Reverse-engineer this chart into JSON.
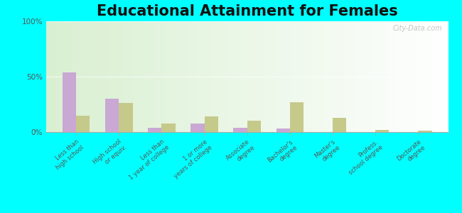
{
  "title": "Educational Attainment for Females",
  "categories": [
    "Less than\nhigh school",
    "High school\nor equiv.",
    "Less than\n1 year of college",
    "1 or more\nyears of college",
    "Associate\ndegree",
    "Bachelor's\ndegree",
    "Master's\ndegree",
    "Profess.\nschool degree",
    "Doctorate\ndegree"
  ],
  "citrus_city": [
    54,
    30,
    4,
    8,
    4,
    3,
    0,
    0,
    0
  ],
  "texas": [
    15,
    26,
    8,
    14,
    10,
    27,
    13,
    2,
    1
  ],
  "citrus_city_color": "#c9a8d4",
  "texas_color": "#c5c98a",
  "outer_bg": "#00ffff",
  "title_fontsize": 15,
  "ylabel_ticks": [
    "0%",
    "50%",
    "100%"
  ],
  "yticks": [
    0,
    50,
    100
  ],
  "ylim": [
    0,
    100
  ],
  "watermark": "City-Data.com",
  "grad_colors": [
    "#c8e6a0",
    "#e8f5d5",
    "#f5fde8",
    "#ffffff"
  ]
}
